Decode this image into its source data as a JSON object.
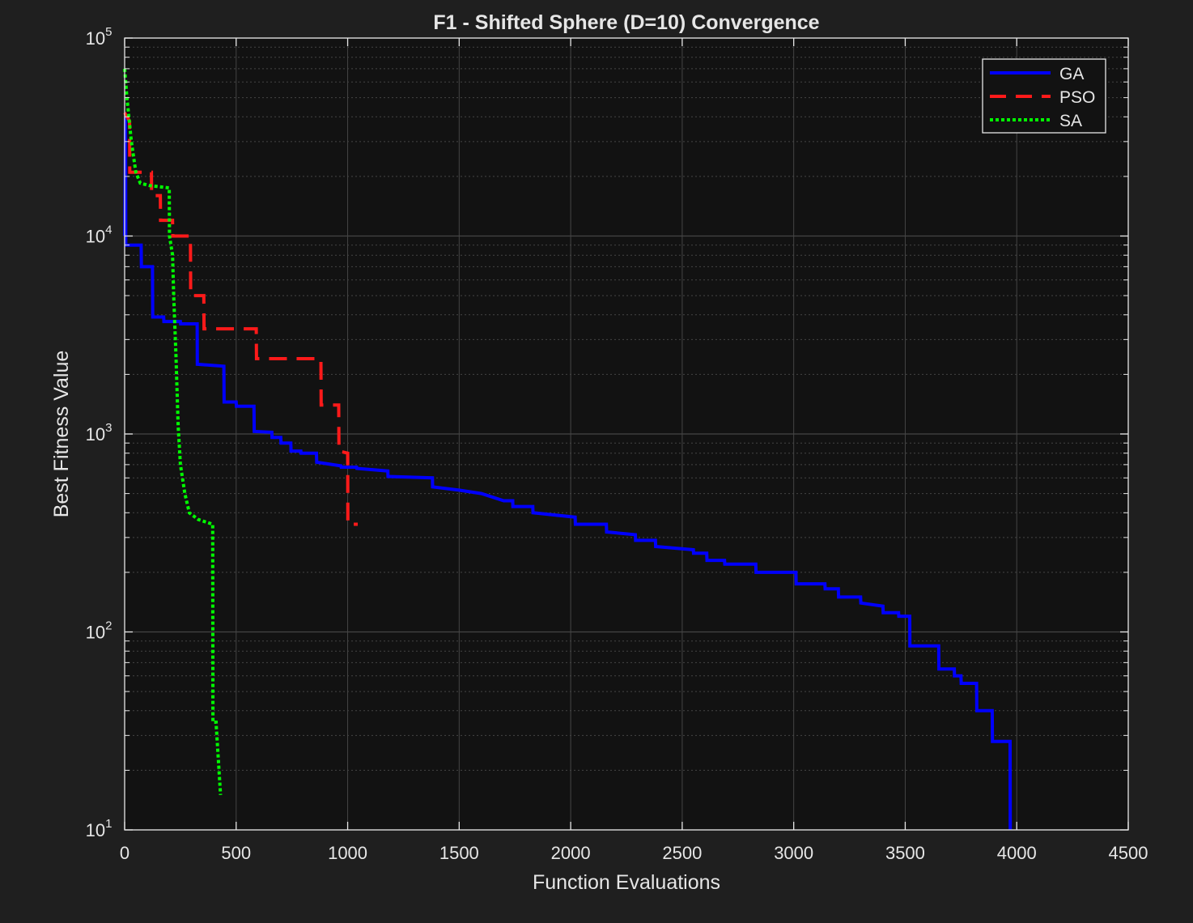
{
  "chart_data": {
    "type": "line",
    "title": "F1 - Shifted Sphere (D=10) Convergence",
    "xlabel": "Function Evaluations",
    "ylabel": "Best Fitness Value",
    "xlim": [
      0,
      4500
    ],
    "ylim": [
      10,
      100000
    ],
    "yscale": "log",
    "grid": true,
    "legend_position": "top-right",
    "x_ticks": [
      "0",
      "500",
      "1000",
      "1500",
      "2000",
      "2500",
      "3000",
      "3500",
      "4000",
      "4500"
    ],
    "y_ticks": [
      {
        "base": "10",
        "exp": "1"
      },
      {
        "base": "10",
        "exp": "2"
      },
      {
        "base": "10",
        "exp": "3"
      },
      {
        "base": "10",
        "exp": "4"
      },
      {
        "base": "10",
        "exp": "5"
      }
    ],
    "colors": {
      "background": "#1f1f1f",
      "axes": "#121212",
      "grid": "#454545",
      "text": "#e6e6e6"
    },
    "series": [
      {
        "name": "GA",
        "color": "#0000ff",
        "style": "solid",
        "points": [
          [
            0,
            10000
          ],
          [
            4,
            40000
          ],
          [
            5,
            9000
          ],
          [
            74,
            9000
          ],
          [
            75,
            7000
          ],
          [
            125,
            7000
          ],
          [
            126,
            3900
          ],
          [
            175,
            3900
          ],
          [
            176,
            3700
          ],
          [
            250,
            3700
          ],
          [
            251,
            3600
          ],
          [
            325,
            3600
          ],
          [
            326,
            2250
          ],
          [
            445,
            2200
          ],
          [
            446,
            1450
          ],
          [
            500,
            1450
          ],
          [
            501,
            1380
          ],
          [
            580,
            1380
          ],
          [
            581,
            1030
          ],
          [
            660,
            1020
          ],
          [
            661,
            960
          ],
          [
            700,
            960
          ],
          [
            701,
            900
          ],
          [
            745,
            900
          ],
          [
            746,
            820
          ],
          [
            790,
            820
          ],
          [
            791,
            800
          ],
          [
            860,
            800
          ],
          [
            861,
            720
          ],
          [
            970,
            690
          ],
          [
            971,
            680
          ],
          [
            1040,
            680
          ],
          [
            1041,
            670
          ],
          [
            1180,
            650
          ],
          [
            1181,
            610
          ],
          [
            1380,
            600
          ],
          [
            1381,
            540
          ],
          [
            1500,
            520
          ],
          [
            1600,
            500
          ],
          [
            1700,
            460
          ],
          [
            1740,
            460
          ],
          [
            1741,
            430
          ],
          [
            1830,
            430
          ],
          [
            1831,
            400
          ],
          [
            2020,
            380
          ],
          [
            2021,
            350
          ],
          [
            2160,
            350
          ],
          [
            2161,
            320
          ],
          [
            2290,
            310
          ],
          [
            2291,
            290
          ],
          [
            2380,
            290
          ],
          [
            2381,
            270
          ],
          [
            2550,
            260
          ],
          [
            2551,
            250
          ],
          [
            2610,
            250
          ],
          [
            2611,
            230
          ],
          [
            2690,
            230
          ],
          [
            2691,
            220
          ],
          [
            2830,
            220
          ],
          [
            2831,
            200
          ],
          [
            3010,
            200
          ],
          [
            3011,
            175
          ],
          [
            3140,
            175
          ],
          [
            3141,
            165
          ],
          [
            3200,
            165
          ],
          [
            3201,
            150
          ],
          [
            3300,
            150
          ],
          [
            3301,
            140
          ],
          [
            3400,
            135
          ],
          [
            3401,
            125
          ],
          [
            3470,
            125
          ],
          [
            3471,
            120
          ],
          [
            3520,
            120
          ],
          [
            3521,
            85
          ],
          [
            3650,
            85
          ],
          [
            3651,
            65
          ],
          [
            3720,
            65
          ],
          [
            3721,
            60
          ],
          [
            3750,
            60
          ],
          [
            3751,
            55
          ],
          [
            3820,
            55
          ],
          [
            3821,
            40
          ],
          [
            3890,
            40
          ],
          [
            3891,
            28
          ],
          [
            3970,
            28
          ],
          [
            3971,
            10
          ]
        ]
      },
      {
        "name": "PSO",
        "color": "#ff1a1a",
        "style": "dashed",
        "points": [
          [
            0,
            42000
          ],
          [
            22,
            38000
          ],
          [
            23,
            21000
          ],
          [
            120,
            21000
          ],
          [
            121,
            16000
          ],
          [
            160,
            16000
          ],
          [
            161,
            12000
          ],
          [
            215,
            12000
          ],
          [
            216,
            10000
          ],
          [
            295,
            10000
          ],
          [
            296,
            5000
          ],
          [
            355,
            5000
          ],
          [
            356,
            3400
          ],
          [
            590,
            3400
          ],
          [
            591,
            2400
          ],
          [
            880,
            2400
          ],
          [
            881,
            1400
          ],
          [
            960,
            1400
          ],
          [
            961,
            820
          ],
          [
            1000,
            800
          ],
          [
            1001,
            350
          ],
          [
            1045,
            350
          ]
        ]
      },
      {
        "name": "SA",
        "color": "#00ff00",
        "style": "dotted",
        "points": [
          [
            0,
            70000
          ],
          [
            10,
            50000
          ],
          [
            30,
            30000
          ],
          [
            50,
            21000
          ],
          [
            70,
            18500
          ],
          [
            110,
            18000
          ],
          [
            200,
            17500
          ],
          [
            201,
            10000
          ],
          [
            215,
            8000
          ],
          [
            220,
            5000
          ],
          [
            230,
            2500
          ],
          [
            240,
            1100
          ],
          [
            250,
            700
          ],
          [
            270,
            500
          ],
          [
            290,
            400
          ],
          [
            330,
            370
          ],
          [
            395,
            350
          ],
          [
            396,
            35
          ],
          [
            410,
            35
          ],
          [
            411,
            33
          ],
          [
            430,
            15
          ]
        ]
      }
    ]
  }
}
